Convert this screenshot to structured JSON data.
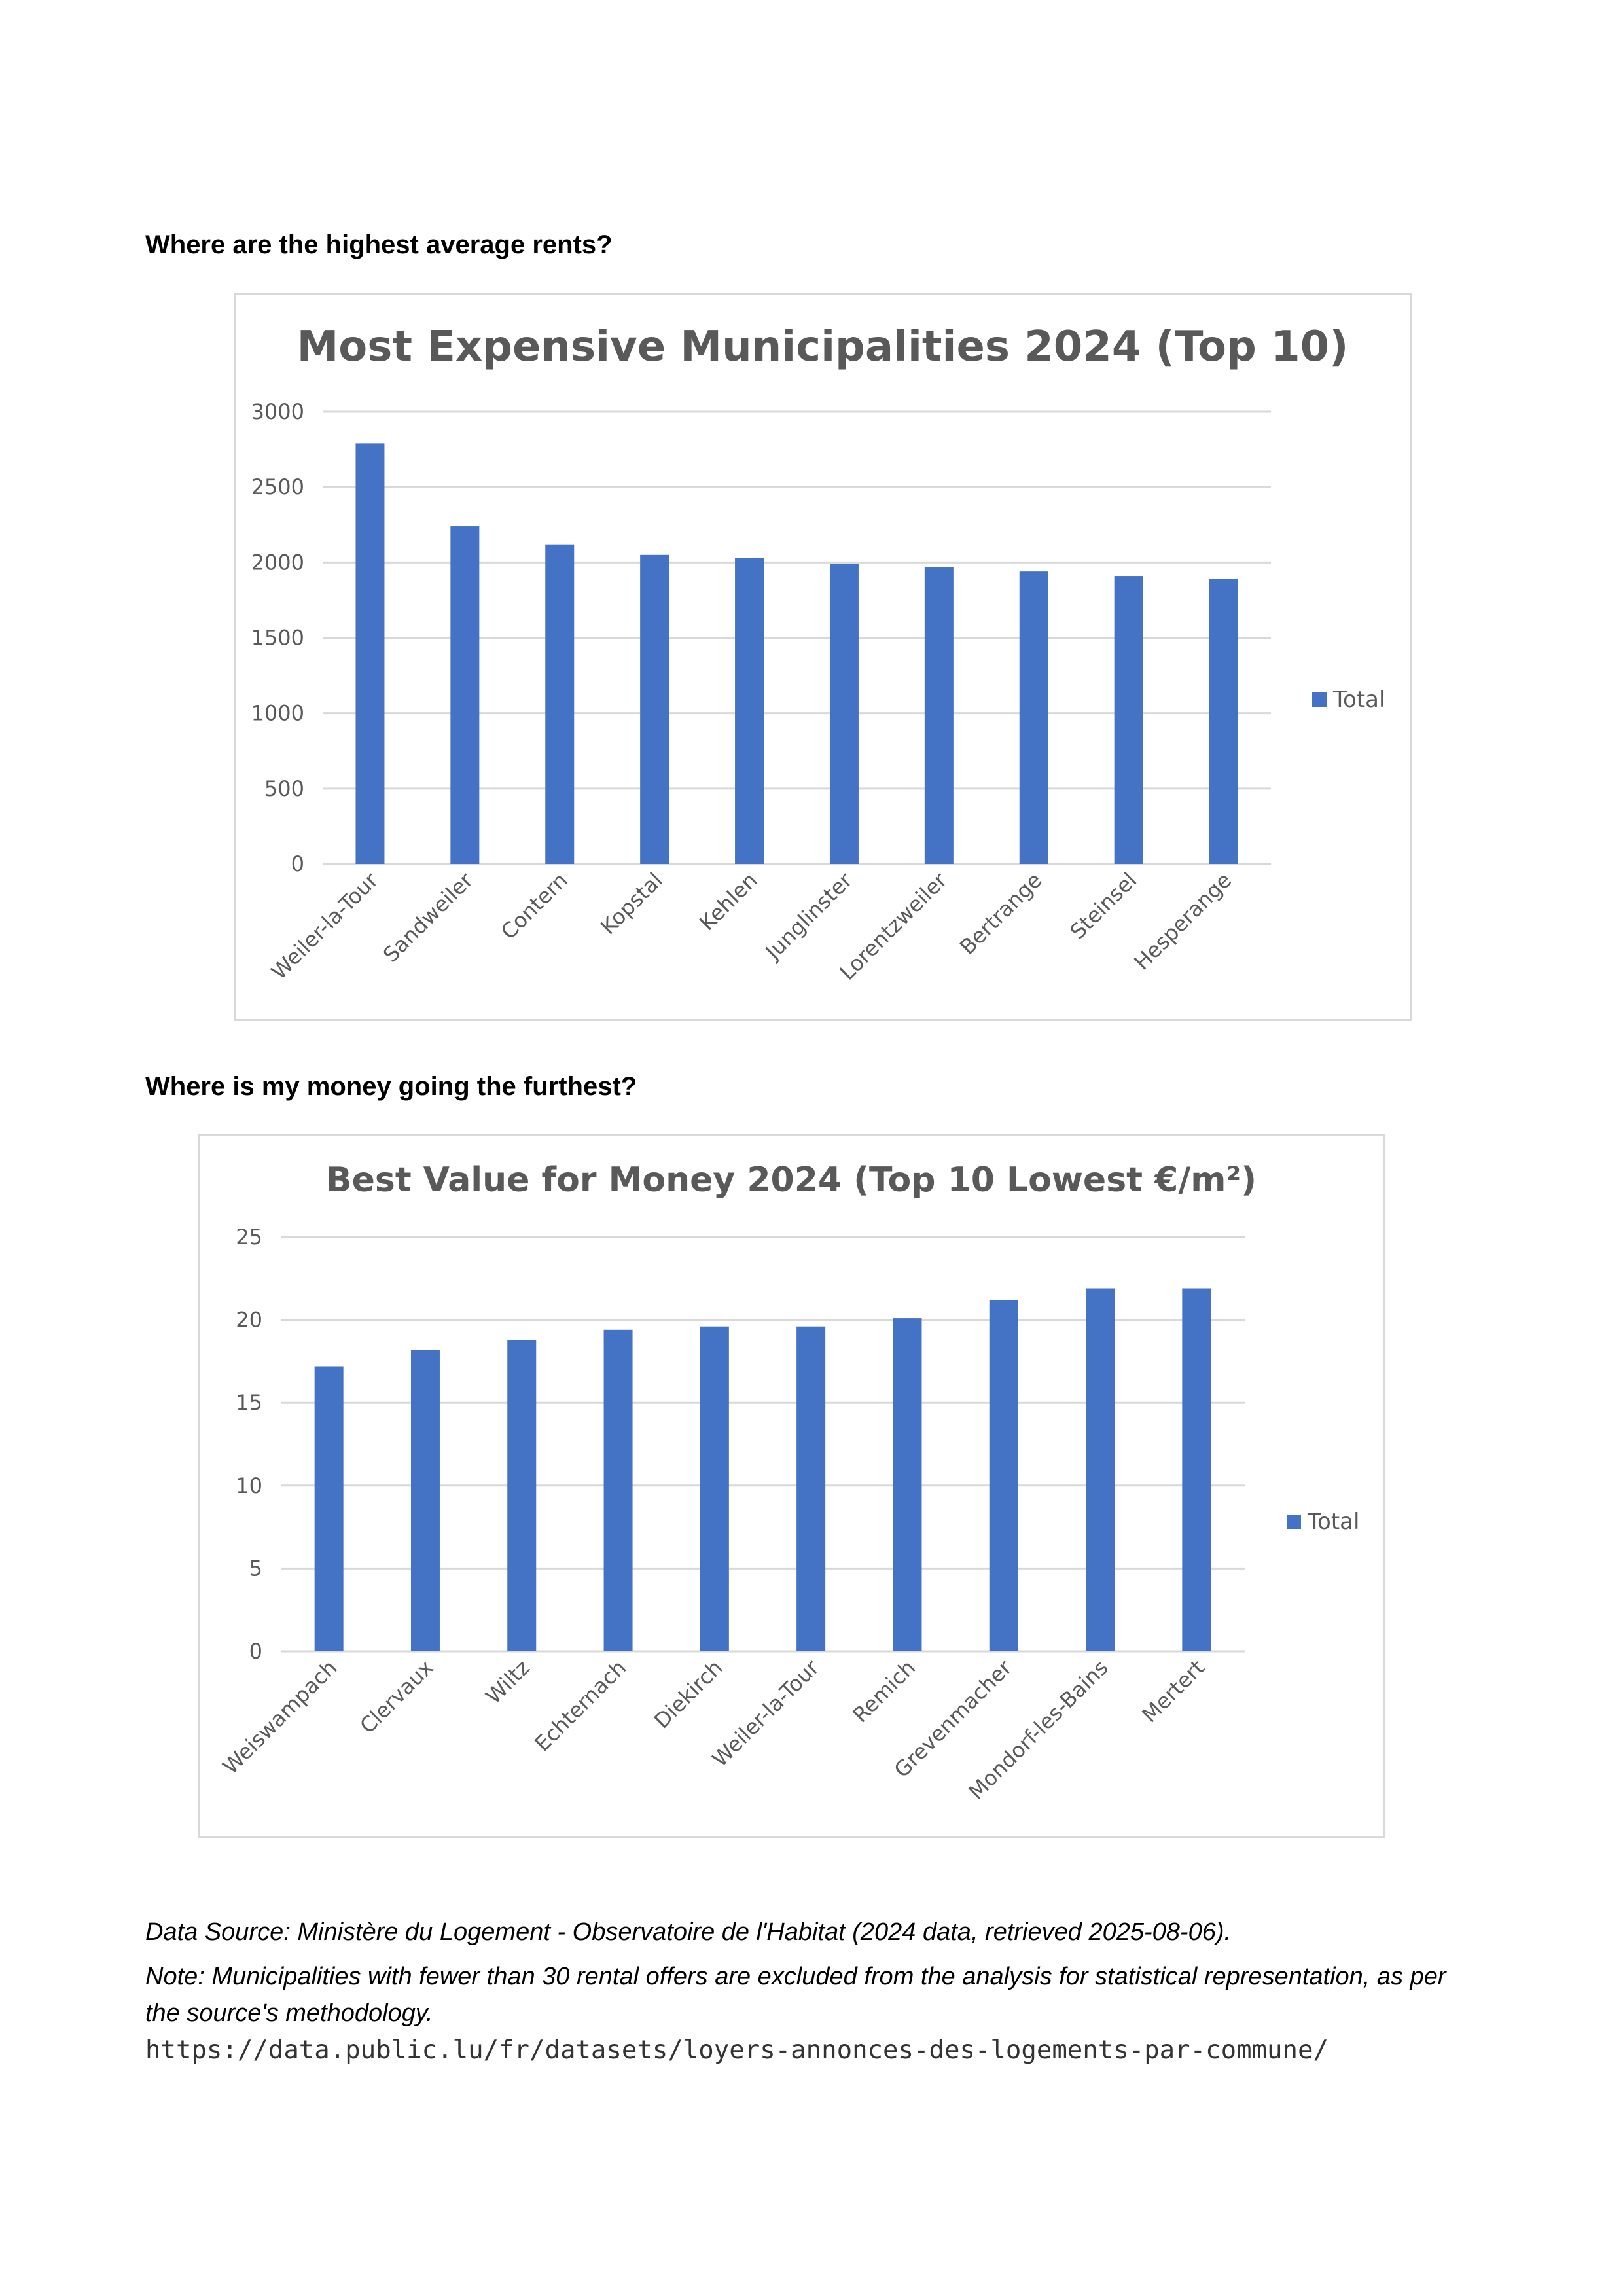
{
  "headings": {
    "first": "Where are the highest average rents?",
    "second": "Where is my money going the furthest?"
  },
  "colors": {
    "bar": "#4472c4",
    "grid": "#d9d9d9",
    "text": "#595959"
  },
  "chart_data": [
    {
      "type": "bar",
      "title": "Most Expensive Municipalities 2024 (Top 10)",
      "xlabel": "",
      "ylabel": "",
      "ylim": [
        0,
        3000
      ],
      "yticks": [
        0,
        500,
        1000,
        1500,
        2000,
        2500,
        3000
      ],
      "grid": true,
      "legend_position": "right",
      "categories": [
        "Weiler-la-Tour",
        "Sandweiler",
        "Contern",
        "Kopstal",
        "Kehlen",
        "Junglinster",
        "Lorentzweiler",
        "Bertrange",
        "Steinsel",
        "Hesperange"
      ],
      "series": [
        {
          "name": "Total",
          "values": [
            2790,
            2240,
            2120,
            2050,
            2030,
            1990,
            1970,
            1940,
            1910,
            1890
          ]
        }
      ]
    },
    {
      "type": "bar",
      "title": "Best Value for Money 2024 (Top 10 Lowest €/m²)",
      "xlabel": "",
      "ylabel": "",
      "ylim": [
        0,
        25
      ],
      "yticks": [
        0,
        5,
        10,
        15,
        20,
        25
      ],
      "grid": true,
      "legend_position": "right",
      "categories": [
        "Weiswampach",
        "Clervaux",
        "Wiltz",
        "Echternach",
        "Diekirch",
        "Weiler-la-Tour",
        "Remich",
        "Grevenmacher",
        "Mondorf-les-Bains",
        "Mertert"
      ],
      "series": [
        {
          "name": "Total",
          "values": [
            17.2,
            18.2,
            18.8,
            19.4,
            19.6,
            19.6,
            20.1,
            21.2,
            21.9,
            21.9
          ]
        }
      ]
    }
  ],
  "footer": {
    "source": "Data Source: Ministère du Logement - Observatoire de l'Habitat (2024 data, retrieved 2025-08-06).",
    "note": "Note: Municipalities with fewer than 30 rental offers are excluded from the analysis for statistical representation, as per the source's methodology.",
    "url": "https://data.public.lu/fr/datasets/loyers-annonces-des-logements-par-commune/"
  }
}
